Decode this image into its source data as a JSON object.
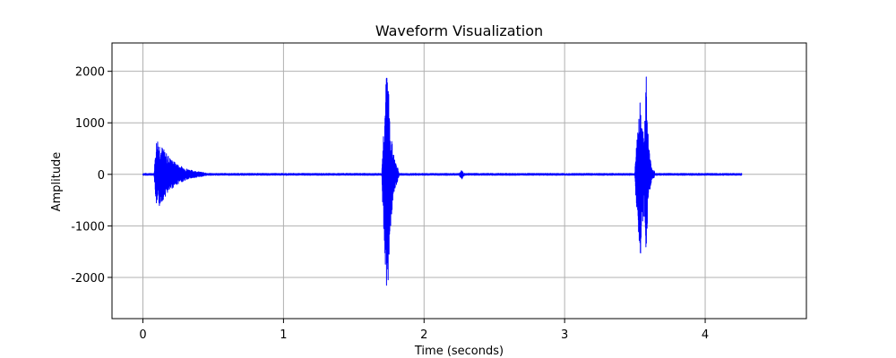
{
  "chart_data": {
    "type": "line",
    "title": "Waveform Visualization",
    "xlabel": "Time (seconds)",
    "ylabel": "Amplitude",
    "xlim": [
      -0.22,
      4.72
    ],
    "ylim": [
      -2800,
      2550
    ],
    "xticks": [
      0,
      1,
      2,
      3,
      4
    ],
    "xtick_labels": [
      "0",
      "1",
      "2",
      "3",
      "4"
    ],
    "yticks": [
      -2000,
      -1000,
      0,
      1000,
      2000
    ],
    "ytick_labels": [
      "-2000",
      "-1000",
      "0",
      "1000",
      "2000"
    ],
    "grid": true,
    "legend": "none",
    "series": [
      {
        "color": "#0000ff",
        "x_range": [
          0,
          4.26
        ],
        "bursts": [
          {
            "start": 0.08,
            "peak": 0.1,
            "end": 0.45,
            "max": 760,
            "min": -740
          },
          {
            "start": 0.17,
            "peak": 0.18,
            "end": 0.32,
            "max": 380,
            "min": -420
          },
          {
            "start": 1.7,
            "peak": 1.74,
            "end": 1.82,
            "max": 2270,
            "min": -2530
          },
          {
            "start": 2.25,
            "peak": 2.27,
            "end": 2.3,
            "max": 90,
            "min": -130
          },
          {
            "start": 3.5,
            "peak": 3.54,
            "end": 3.64,
            "max": 1500,
            "min": -1650
          },
          {
            "start": 3.56,
            "peak": 3.58,
            "end": 3.63,
            "max": 1980,
            "min": -1720
          }
        ],
        "noise_floor": 18
      }
    ],
    "colors": {
      "line": "#0000ff",
      "grid": "#b0b0b0",
      "axes": "#000000",
      "background": "#ffffff"
    }
  }
}
